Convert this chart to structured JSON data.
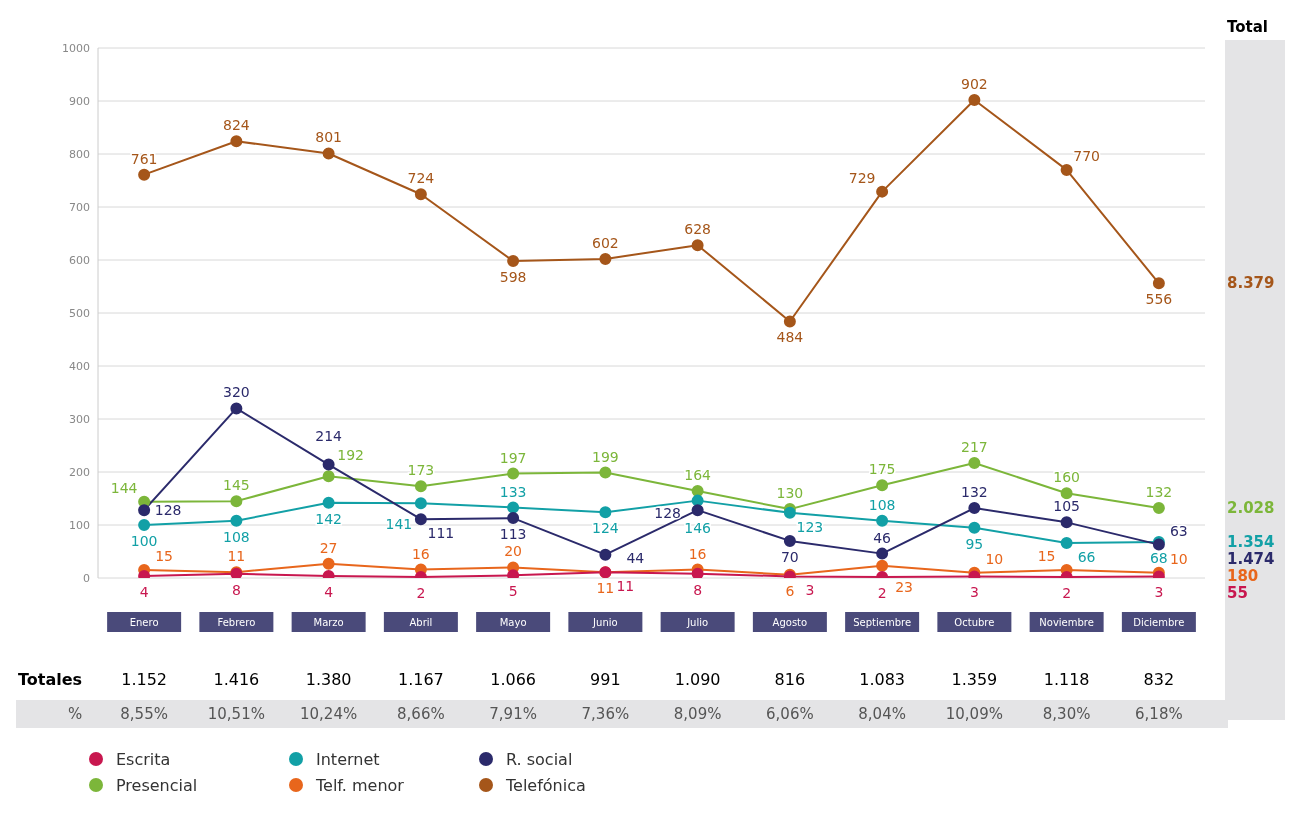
{
  "chart_data": {
    "type": "line",
    "categories": [
      "Enero",
      "Febrero",
      "Marzo",
      "Abril",
      "Mayo",
      "Junio",
      "Julio",
      "Agosto",
      "Septiembre",
      "Octubre",
      "Noviembre",
      "Diciembre"
    ],
    "series": [
      {
        "name": "Telefónica",
        "color": "#a5561a",
        "values": [
          761,
          824,
          801,
          724,
          598,
          602,
          628,
          484,
          729,
          902,
          770,
          556
        ]
      },
      {
        "name": "Presencial",
        "color": "#7cb63a",
        "values": [
          144,
          145,
          192,
          173,
          197,
          199,
          164,
          130,
          175,
          217,
          160,
          132
        ]
      },
      {
        "name": "Internet",
        "color": "#12a0a6",
        "values": [
          100,
          108,
          142,
          141,
          133,
          124,
          146,
          123,
          108,
          95,
          66,
          68
        ]
      },
      {
        "name": "R. social",
        "color": "#2b2a6b",
        "values": [
          128,
          320,
          214,
          111,
          113,
          44,
          128,
          70,
          46,
          132,
          105,
          63
        ]
      },
      {
        "name": "Telf. menor",
        "color": "#e8661c",
        "values": [
          15,
          11,
          27,
          16,
          20,
          11,
          16,
          6,
          23,
          10,
          15,
          10
        ]
      },
      {
        "name": "Escrita",
        "color": "#c8174f",
        "values": [
          4,
          8,
          4,
          2,
          5,
          11,
          8,
          3,
          2,
          3,
          2,
          3
        ]
      }
    ],
    "ylim": [
      0,
      1000
    ],
    "yticks": [
      0,
      100,
      200,
      300,
      400,
      500,
      600,
      700,
      800,
      900,
      1000
    ],
    "grid": "y",
    "marker": "circle",
    "line_style": "solid",
    "data_labels": true,
    "legend": "bottom left",
    "totals": [
      "1.152",
      "1.416",
      "1.380",
      "1.167",
      "1.066",
      "991",
      "1.090",
      "816",
      "1.083",
      "1.359",
      "1.118",
      "832"
    ],
    "annotations": [
      "Total",
      "8.379",
      "2.028",
      "1.354",
      "1.474",
      "180",
      "55",
      "Totales",
      "%",
      "8,55%",
      "10,51%",
      "10,24%",
      "8,66%",
      "7,91%",
      "7,36%",
      "8,09%",
      "6,06%",
      "8,04%",
      "10,09%",
      "8,30%",
      "6,18%"
    ]
  }
}
